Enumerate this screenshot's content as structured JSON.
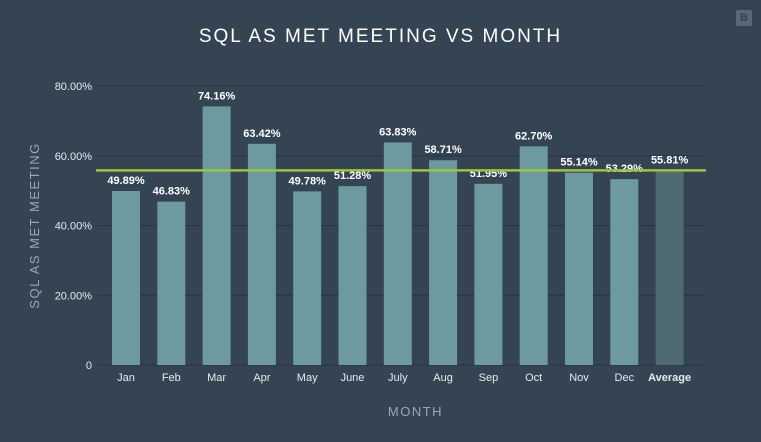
{
  "logo": "B",
  "chart_data": {
    "type": "bar",
    "title": "SQL AS MET MEETING VS MONTH",
    "xlabel": "MONTH",
    "ylabel": "SQL AS MET MEETING",
    "categories": [
      "Jan",
      "Feb",
      "Mar",
      "Apr",
      "May",
      "June",
      "July",
      "Aug",
      "Sep",
      "Oct",
      "Nov",
      "Dec",
      "Average"
    ],
    "values": [
      49.89,
      46.83,
      74.16,
      63.42,
      49.78,
      51.28,
      63.83,
      58.71,
      51.95,
      62.7,
      55.14,
      53.29,
      55.81
    ],
    "value_labels": [
      "49.89%",
      "46.83%",
      "74.16%",
      "63.42%",
      "49.78%",
      "51.28%",
      "63.83%",
      "58.71%",
      "51.95%",
      "62.70%",
      "55.14%",
      "53.29%",
      "55.81%"
    ],
    "yticks": [
      0,
      20,
      40,
      60,
      80
    ],
    "ytick_labels": [
      "0",
      "20.00%",
      "40.00%",
      "60.00%",
      "80.00%"
    ],
    "ylim": [
      0,
      80
    ],
    "average_line": 55.81,
    "grid": true,
    "legend": "none",
    "colors": {
      "bar": "#6d9a9e",
      "average_bar": "#4f6a70",
      "average_line": "#9cc43c",
      "grid": "#27333f"
    }
  }
}
